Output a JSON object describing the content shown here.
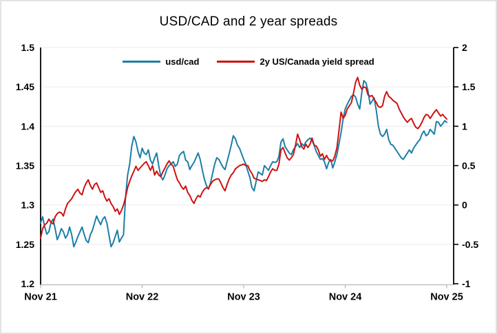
{
  "title": "USD/CAD and 2 year spreads",
  "legend": [
    {
      "label": "usd/cad",
      "color": "#1b7ea6"
    },
    {
      "label": "2y US/Canada yield spread",
      "color": "#ce1111"
    }
  ],
  "colors": {
    "usdcad_line": "#1b7ea6",
    "spread_line": "#ce1111",
    "gridline": "#ececec",
    "value_axes": "#000000",
    "date_axis": "#c0c0c0"
  },
  "chart_data": {
    "type": "line",
    "title": "USD/CAD and 2 year spreads",
    "grid": true,
    "legend_position": "top-center",
    "x_axis": {
      "unit": "years since Nov 21",
      "range": [
        0,
        4
      ],
      "tick_labels": [
        "Nov 21",
        "Nov 22",
        "Nov 23",
        "Nov 24",
        "Nov 25"
      ],
      "tick_values": [
        0,
        1,
        2,
        3,
        4
      ]
    },
    "left_axis": {
      "series": "usd/cad",
      "min": 1.2,
      "max": 1.5,
      "tick_labels": [
        "1.5",
        "1.45",
        "1.4",
        "1.35",
        "1.3",
        "1.25",
        "1.2"
      ],
      "tick_values": [
        1.5,
        1.45,
        1.4,
        1.35,
        1.3,
        1.25,
        1.2
      ]
    },
    "right_axis": {
      "series": "2y US/Canada yield spread",
      "min": -1,
      "max": 2,
      "tick_labels": [
        "2",
        "1.5",
        "1",
        "0.5",
        "0",
        "-0.5",
        "-1"
      ],
      "tick_values": [
        2,
        1.5,
        1,
        0.5,
        0,
        -0.5,
        -1
      ]
    },
    "series": [
      {
        "name": "usd/cad",
        "axis": "left",
        "color": "#1b7ea6",
        "x_spacing": "uniform over x_axis.range",
        "values": [
          1.277,
          1.285,
          1.272,
          1.263,
          1.266,
          1.278,
          1.282,
          1.27,
          1.256,
          1.262,
          1.27,
          1.266,
          1.258,
          1.262,
          1.272,
          1.262,
          1.247,
          1.253,
          1.26,
          1.266,
          1.272,
          1.263,
          1.255,
          1.252,
          1.262,
          1.268,
          1.277,
          1.286,
          1.28,
          1.275,
          1.282,
          1.285,
          1.277,
          1.262,
          1.247,
          1.252,
          1.26,
          1.268,
          1.253,
          1.258,
          1.262,
          1.31,
          1.338,
          1.352,
          1.375,
          1.387,
          1.38,
          1.368,
          1.36,
          1.372,
          1.366,
          1.364,
          1.37,
          1.357,
          1.352,
          1.36,
          1.366,
          1.35,
          1.336,
          1.332,
          1.338,
          1.346,
          1.35,
          1.352,
          1.355,
          1.349,
          1.352,
          1.363,
          1.366,
          1.368,
          1.357,
          1.355,
          1.345,
          1.35,
          1.354,
          1.36,
          1.366,
          1.358,
          1.345,
          1.333,
          1.325,
          1.32,
          1.328,
          1.34,
          1.352,
          1.36,
          1.358,
          1.353,
          1.348,
          1.345,
          1.355,
          1.365,
          1.376,
          1.388,
          1.384,
          1.376,
          1.372,
          1.365,
          1.358,
          1.352,
          1.343,
          1.335,
          1.322,
          1.318,
          1.33,
          1.342,
          1.34,
          1.338,
          1.35,
          1.347,
          1.344,
          1.35,
          1.355,
          1.354,
          1.355,
          1.362,
          1.38,
          1.384,
          1.374,
          1.37,
          1.366,
          1.364,
          1.37,
          1.374,
          1.378,
          1.373,
          1.378,
          1.375,
          1.38,
          1.383,
          1.385,
          1.382,
          1.376,
          1.368,
          1.363,
          1.358,
          1.359,
          1.355,
          1.346,
          1.354,
          1.358,
          1.347,
          1.355,
          1.364,
          1.378,
          1.392,
          1.41,
          1.422,
          1.428,
          1.433,
          1.438,
          1.44,
          1.437,
          1.428,
          1.422,
          1.443,
          1.458,
          1.455,
          1.445,
          1.428,
          1.432,
          1.436,
          1.42,
          1.4,
          1.39,
          1.387,
          1.39,
          1.396,
          1.383,
          1.377,
          1.376,
          1.372,
          1.368,
          1.364,
          1.36,
          1.358,
          1.362,
          1.366,
          1.37,
          1.366,
          1.372,
          1.376,
          1.38,
          1.383,
          1.39,
          1.394,
          1.388,
          1.39,
          1.396,
          1.393,
          1.39,
          1.406,
          1.405,
          1.4,
          1.403,
          1.407,
          1.405
        ]
      },
      {
        "name": "2y US/Canada yield spread",
        "axis": "right",
        "color": "#ce1111",
        "x_spacing": "uniform over x_axis.range",
        "values": [
          -0.42,
          -0.3,
          -0.25,
          -0.23,
          -0.18,
          -0.22,
          -0.24,
          -0.15,
          -0.11,
          -0.09,
          -0.1,
          -0.14,
          -0.05,
          0.02,
          0.05,
          0.08,
          0.13,
          0.17,
          0.2,
          0.15,
          0.13,
          0.22,
          0.28,
          0.32,
          0.25,
          0.2,
          0.26,
          0.28,
          0.22,
          0.16,
          0.18,
          0.1,
          0.05,
          0.08,
          0.02,
          -0.02,
          -0.08,
          -0.05,
          -0.12,
          -0.07,
          0.0,
          0.1,
          0.22,
          0.3,
          0.37,
          0.43,
          0.49,
          0.44,
          0.47,
          0.5,
          0.53,
          0.55,
          0.5,
          0.44,
          0.5,
          0.38,
          0.43,
          0.38,
          0.36,
          0.42,
          0.47,
          0.52,
          0.56,
          0.52,
          0.49,
          0.4,
          0.32,
          0.28,
          0.23,
          0.2,
          0.24,
          0.16,
          0.12,
          0.06,
          0.02,
          0.08,
          0.12,
          0.1,
          0.16,
          0.2,
          0.22,
          0.21,
          0.26,
          0.3,
          0.32,
          0.33,
          0.33,
          0.28,
          0.22,
          0.18,
          0.26,
          0.33,
          0.38,
          0.41,
          0.46,
          0.48,
          0.5,
          0.51,
          0.52,
          0.5,
          0.5,
          0.44,
          0.4,
          0.34,
          0.33,
          0.32,
          0.31,
          0.3,
          0.32,
          0.31,
          0.36,
          0.42,
          0.46,
          0.44,
          0.44,
          0.52,
          0.7,
          0.73,
          0.66,
          0.6,
          0.57,
          0.6,
          0.64,
          0.76,
          0.9,
          0.83,
          0.74,
          0.71,
          0.77,
          0.73,
          0.77,
          0.85,
          0.76,
          0.75,
          0.7,
          0.62,
          0.65,
          0.58,
          0.63,
          0.58,
          0.56,
          0.56,
          0.62,
          0.73,
          0.95,
          1.18,
          1.1,
          1.14,
          1.22,
          1.26,
          1.3,
          1.42,
          1.56,
          1.62,
          1.52,
          1.47,
          1.5,
          1.49,
          1.4,
          1.38,
          1.39,
          1.34,
          1.3,
          1.25,
          1.24,
          1.26,
          1.38,
          1.44,
          1.38,
          1.36,
          1.33,
          1.31,
          1.29,
          1.22,
          1.17,
          1.12,
          1.08,
          1.05,
          1.08,
          1.1,
          1.04,
          0.99,
          0.97,
          1.0,
          1.05,
          1.11,
          1.15,
          1.14,
          1.1,
          1.14,
          1.18,
          1.21,
          1.17,
          1.13,
          1.15,
          1.12,
          1.09
        ]
      }
    ]
  }
}
